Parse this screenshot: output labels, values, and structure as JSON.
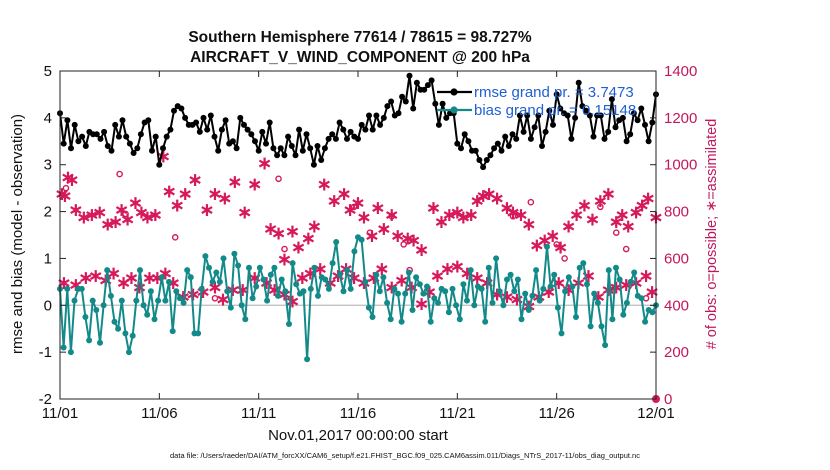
{
  "chart_data": {
    "type": "line",
    "title": "Southern Hemisphere 77614 / 78615 = 98.727%",
    "subtitle": "AIRCRAFT_V_WIND_COMPONENT @ 200 hPa",
    "xlabel": "Nov.01,2017 00:00:00 start",
    "ylabel": "rmse and bias (model - observation)",
    "y2label": "# of obs: o=possible; ∗=assimilated",
    "footer": "data file: /Users/raeder/DAI/ATM_forcXX/CAM6_setup/f.e21.FHIST_BGC.f09_025.CAM6assim.011/Diags_NTrS_2017-11/obs_diag_output.nc",
    "x_ticks": [
      "11/01",
      "11/06",
      "11/11",
      "11/16",
      "11/21",
      "11/26",
      "12/01"
    ],
    "x_tick_days": [
      0,
      5,
      10,
      15,
      20,
      25,
      30
    ],
    "xlim": [
      0,
      30
    ],
    "ylim": [
      -2,
      5
    ],
    "y_ticks": [
      "-2",
      "-1",
      "0",
      "1",
      "2",
      "3",
      "4",
      "5"
    ],
    "y_tick_values": [
      -2,
      -1,
      0,
      1,
      2,
      3,
      4,
      5
    ],
    "y2lim": [
      0,
      1400
    ],
    "y2_ticks": [
      "0",
      "200",
      "400",
      "600",
      "800",
      "1000",
      "1200",
      "1400"
    ],
    "y2_tick_values": [
      0,
      200,
      400,
      600,
      800,
      1000,
      1200,
      1400
    ],
    "grid": false,
    "legend_position": "top-right",
    "series": [
      {
        "name": "rmse grand pr. = 3.7473",
        "color": "#000000",
        "values": [
          4.1,
          3.45,
          3.95,
          3.35,
          3.85,
          3.5,
          3.6,
          3.4,
          3.7,
          3.65,
          3.65,
          3.55,
          3.7,
          3.4,
          3.3,
          3.85,
          3.6,
          3.95,
          3.6,
          3.45,
          3.25,
          3.35,
          3.65,
          3.9,
          3.95,
          3.3,
          3.6,
          3.0,
          3.35,
          3.6,
          3.75,
          4.15,
          4.25,
          4.2,
          4.0,
          3.85,
          3.85,
          3.9,
          3.7,
          4.0,
          3.75,
          4.05,
          3.6,
          3.3,
          3.75,
          3.95,
          3.45,
          3.5,
          3.35,
          4.0,
          3.85,
          3.75,
          3.65,
          3.5,
          3.3,
          3.7,
          3.45,
          3.9,
          3.35,
          3.2,
          3.35,
          3.2,
          3.6,
          3.4,
          3.2,
          3.75,
          3.3,
          3.65,
          3.35,
          3.0,
          3.4,
          3.1,
          3.35,
          3.55,
          3.65,
          3.55,
          3.9,
          3.75,
          3.55,
          3.7,
          3.6,
          3.55,
          3.85,
          3.75,
          4.05,
          3.75,
          4.05,
          3.85,
          4.0,
          4.25,
          4.35,
          4.05,
          4.1,
          4.45,
          4.35,
          4.9,
          4.2,
          4.75,
          4.6,
          4.6,
          4.7,
          4.8,
          4.3,
          3.85,
          4.3,
          4.0,
          4.1,
          4.1,
          3.45,
          3.35,
          3.65,
          3.5,
          3.3,
          3.3,
          3.1,
          2.95,
          3.1,
          3.2,
          3.35,
          3.45,
          3.3,
          3.6,
          3.4,
          3.65,
          3.55,
          4.05,
          3.7,
          4.05,
          3.55,
          3.8,
          4.05,
          3.4,
          3.7,
          4.15,
          3.85,
          4.5,
          4.2,
          4.1,
          4.05,
          3.55,
          4.0,
          4.75,
          4.25,
          4.15,
          4.05,
          3.6,
          4.05,
          4.05,
          3.55,
          3.7,
          4.4,
          3.8,
          3.95,
          4.0,
          3.5,
          3.65,
          4.1,
          3.95,
          4.2,
          3.85,
          3.5,
          3.9,
          4.5
        ]
      },
      {
        "name": "bias grand pr. = 0.15148",
        "color": "#138a8a",
        "values": [
          0.35,
          -0.9,
          0.35,
          -1.0,
          0.1,
          0.35,
          0.35,
          -0.25,
          -0.75,
          0.1,
          -0.1,
          -0.8,
          0.0,
          0.75,
          0.2,
          -0.35,
          -0.5,
          0.1,
          -0.6,
          -1.0,
          -0.65,
          0.1,
          0.75,
          0.0,
          -0.2,
          0.3,
          -0.3,
          0.1,
          0.6,
          0.1,
          0.5,
          -0.55,
          0.3,
          0.15,
          0.05,
          0.75,
          0.6,
          -0.6,
          -0.6,
          0.35,
          1.05,
          0.8,
          0.5,
          0.7,
          0.5,
          1.0,
          0.3,
          -0.05,
          1.1,
          0.85,
          0.0,
          -0.3,
          0.8,
          0.15,
          0.4,
          0.8,
          0.55,
          0.1,
          0.65,
          0.8,
          0.2,
          0.55,
          0.3,
          -0.4,
          0.9,
          0.45,
          0.25,
          0.3,
          -1.15,
          0.35,
          0.8,
          0.2,
          0.6,
          0.55,
          0.35,
          0.9,
          1.35,
          0.65,
          0.3,
          0.75,
          0.35,
          1.15,
          1.45,
          1.4,
          0.5,
          -0.05,
          -0.25,
          0.65,
          0.3,
          0.6,
          0.05,
          -0.3,
          0.35,
          0.25,
          -0.35,
          0.25,
          0.7,
          -0.1,
          0.6,
          0.45,
          0.25,
          0.4,
          -0.35,
          0.15,
          0.05,
          0.35,
          0.3,
          -0.15,
          0.35,
          0.0,
          -0.3,
          0.45,
          0.1,
          0.75,
          0.0,
          0.4,
          0.35,
          -0.35,
          0.8,
          0.05,
          1.0,
          0.3,
          0.0,
          0.55,
          0.65,
          0.3,
          0.55,
          -0.3,
          0.25,
          -0.1,
          0.2,
          0.75,
          0.1,
          0.35,
          1.25,
          0.4,
          0.65,
          -0.05,
          -0.6,
          0.3,
          0.6,
          0.4,
          -0.25,
          0.8,
          0.9,
          0.45,
          -0.45,
          0.25,
          0.05,
          -0.45,
          -0.85,
          0.75,
          -0.3,
          0.8,
          0.55,
          -0.2,
          0.05,
          0.5,
          0.7,
          0.2,
          0.15,
          -0.35,
          -0.1,
          -0.15,
          0.0
        ]
      }
    ],
    "obs_counts": {
      "color": "#d6195b",
      "possible_days": [
        0.3,
        3.0,
        3.3,
        5.8,
        7.8,
        11.0,
        11.3,
        14.8,
        15.6,
        16.7,
        17.3,
        17.6,
        22.8,
        23.7,
        25.0,
        25.4,
        27.2,
        28.0,
        28.5,
        29.5,
        30.0
      ],
      "possible_values": [
        900,
        960,
        790,
        690,
        430,
        940,
        640,
        820,
        710,
        780,
        660,
        550,
        780,
        840,
        660,
        600,
        820,
        710,
        640,
        430,
        0
      ],
      "assimilated": [
        [
          0.1,
          880
        ],
        [
          0.25,
          870
        ],
        [
          0.4,
          950
        ],
        [
          0.6,
          940
        ],
        [
          0.8,
          810
        ],
        [
          1.2,
          780
        ],
        [
          1.6,
          790
        ],
        [
          2.0,
          800
        ],
        [
          2.4,
          750
        ],
        [
          2.8,
          760
        ],
        [
          3.1,
          810
        ],
        [
          3.4,
          770
        ],
        [
          3.8,
          840
        ],
        [
          4.1,
          800
        ],
        [
          4.4,
          780
        ],
        [
          4.8,
          790
        ],
        [
          5.2,
          1040
        ],
        [
          5.5,
          890
        ],
        [
          5.9,
          830
        ],
        [
          6.3,
          880
        ],
        [
          6.8,
          940
        ],
        [
          7.4,
          810
        ],
        [
          7.8,
          880
        ],
        [
          8.3,
          860
        ],
        [
          8.8,
          930
        ],
        [
          9.3,
          800
        ],
        [
          9.8,
          920
        ],
        [
          10.3,
          1010
        ],
        [
          10.6,
          730
        ],
        [
          11.0,
          710
        ],
        [
          11.3,
          600
        ],
        [
          11.7,
          720
        ],
        [
          12.0,
          650
        ],
        [
          12.5,
          690
        ],
        [
          12.8,
          740
        ],
        [
          13.3,
          920
        ],
        [
          13.8,
          850
        ],
        [
          14.3,
          880
        ],
        [
          14.6,
          810
        ],
        [
          15.0,
          840
        ],
        [
          15.3,
          780
        ],
        [
          15.7,
          700
        ],
        [
          16.0,
          820
        ],
        [
          16.3,
          730
        ],
        [
          16.7,
          790
        ],
        [
          17.0,
          700
        ],
        [
          17.5,
          690
        ],
        [
          17.8,
          680
        ],
        [
          18.2,
          640
        ],
        [
          18.8,
          820
        ],
        [
          19.2,
          760
        ],
        [
          19.6,
          790
        ],
        [
          20.0,
          800
        ],
        [
          20.3,
          780
        ],
        [
          20.7,
          790
        ],
        [
          21.0,
          850
        ],
        [
          21.3,
          870
        ],
        [
          21.6,
          880
        ],
        [
          22.0,
          860
        ],
        [
          22.5,
          820
        ],
        [
          22.8,
          800
        ],
        [
          23.2,
          790
        ],
        [
          23.6,
          750
        ],
        [
          24.0,
          660
        ],
        [
          24.4,
          680
        ],
        [
          24.8,
          700
        ],
        [
          25.2,
          650
        ],
        [
          25.6,
          740
        ],
        [
          26.0,
          790
        ],
        [
          26.4,
          830
        ],
        [
          26.8,
          770
        ],
        [
          27.2,
          850
        ],
        [
          27.6,
          880
        ],
        [
          28.0,
          760
        ],
        [
          28.3,
          790
        ],
        [
          28.6,
          740
        ],
        [
          29.0,
          800
        ],
        [
          29.3,
          830
        ],
        [
          29.6,
          860
        ],
        [
          30.0,
          780
        ],
        [
          0.2,
          500
        ],
        [
          0.8,
          490
        ],
        [
          1.3,
          520
        ],
        [
          1.8,
          530
        ],
        [
          2.3,
          510
        ],
        [
          2.7,
          540
        ],
        [
          3.2,
          500
        ],
        [
          3.6,
          520
        ],
        [
          4.0,
          480
        ],
        [
          4.5,
          520
        ],
        [
          4.9,
          520
        ],
        [
          5.3,
          540
        ],
        [
          5.7,
          500
        ],
        [
          6.2,
          440
        ],
        [
          6.7,
          450
        ],
        [
          7.2,
          460
        ],
        [
          7.8,
          480
        ],
        [
          8.2,
          430
        ],
        [
          8.7,
          470
        ],
        [
          9.2,
          470
        ],
        [
          9.8,
          520
        ],
        [
          10.4,
          500
        ],
        [
          10.8,
          470
        ],
        [
          11.3,
          450
        ],
        [
          11.7,
          420
        ],
        [
          12.2,
          520
        ],
        [
          12.6,
          540
        ],
        [
          13.1,
          560
        ],
        [
          13.6,
          500
        ],
        [
          14.0,
          530
        ],
        [
          14.4,
          560
        ],
        [
          14.8,
          520
        ],
        [
          15.3,
          500
        ],
        [
          15.8,
          520
        ],
        [
          16.2,
          560
        ],
        [
          16.7,
          480
        ],
        [
          17.2,
          510
        ],
        [
          17.7,
          480
        ],
        [
          18.2,
          410
        ],
        [
          18.6,
          460
        ],
        [
          19.0,
          530
        ],
        [
          19.5,
          560
        ],
        [
          20.0,
          570
        ],
        [
          20.5,
          540
        ],
        [
          21.0,
          520
        ],
        [
          21.5,
          500
        ],
        [
          22.0,
          450
        ],
        [
          22.5,
          440
        ],
        [
          23.0,
          430
        ],
        [
          23.6,
          400
        ],
        [
          24.1,
          440
        ],
        [
          24.6,
          460
        ],
        [
          25.1,
          500
        ],
        [
          25.6,
          470
        ],
        [
          26.1,
          500
        ],
        [
          26.6,
          530
        ],
        [
          27.1,
          440
        ],
        [
          27.6,
          470
        ],
        [
          28.0,
          480
        ],
        [
          28.5,
          490
        ],
        [
          29.0,
          500
        ],
        [
          29.5,
          530
        ],
        [
          29.8,
          460
        ]
      ]
    }
  }
}
